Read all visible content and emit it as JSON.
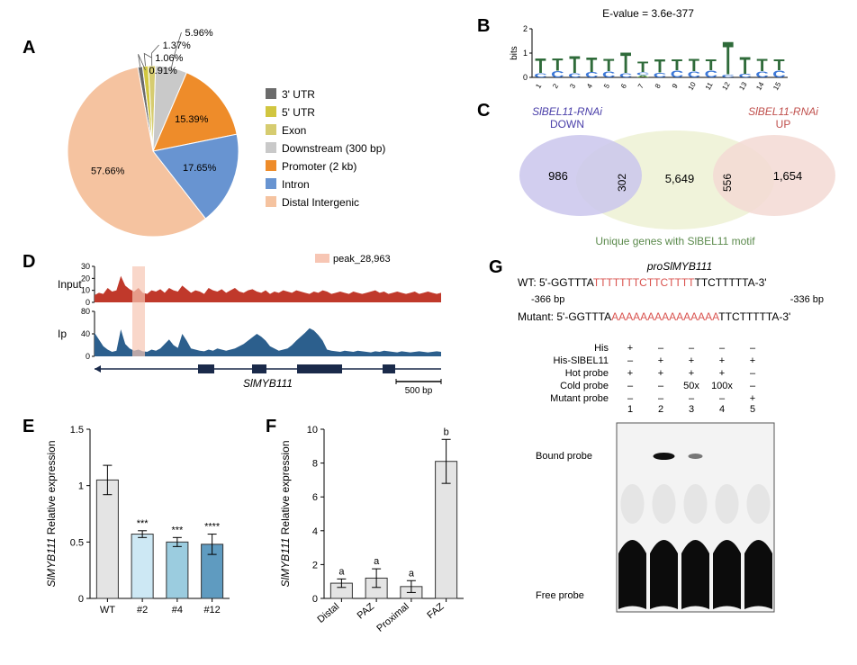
{
  "panelA": {
    "label": "A",
    "pie": {
      "slices": [
        {
          "name": "Distal Intergenic",
          "pct": 57.66,
          "color": "#f5c3a0",
          "label_outside": false
        },
        {
          "name": "Intron",
          "pct": 17.65,
          "color": "#6894d1",
          "label_outside": false
        },
        {
          "name": "Promoter (2 kb)",
          "pct": 15.39,
          "color": "#ee8c2a",
          "label_outside": false
        },
        {
          "name": "Downstream (300 bp)",
          "pct": 5.96,
          "color": "#c9c9c9",
          "label_outside": true
        },
        {
          "name": "Exon",
          "pct": 1.37,
          "color": "#d6cc70",
          "label_outside": true
        },
        {
          "name": "5' UTR",
          "pct": 1.06,
          "color": "#d1c640",
          "label_outside": true
        },
        {
          "name": "3' UTR",
          "pct": 0.91,
          "color": "#6b6b6b",
          "label_outside": true
        }
      ],
      "legend_order": [
        "3' UTR",
        "5' UTR",
        "Exon",
        "Downstream (300 bp)",
        "Promoter (2 kb)",
        "Intron",
        "Distal Intergenic"
      ],
      "label_font_size": 11,
      "legend_font_size": 12
    }
  },
  "panelB": {
    "label": "B",
    "evalue": "E-value = 3.6e-377",
    "motif": {
      "ylabel": "bits",
      "ymax": 2,
      "positions": 15,
      "columns": [
        [
          [
            "C",
            0.18
          ],
          [
            "T",
            0.65
          ]
        ],
        [
          [
            "C",
            0.28
          ],
          [
            "T",
            0.55
          ]
        ],
        [
          [
            "C",
            0.18
          ],
          [
            "T",
            0.75
          ]
        ],
        [
          [
            "C",
            0.22
          ],
          [
            "T",
            0.65
          ]
        ],
        [
          [
            "C",
            0.25
          ],
          [
            "T",
            0.55
          ]
        ],
        [
          [
            "C",
            0.18
          ],
          [
            "T",
            0.9
          ]
        ],
        [
          [
            "A",
            0.1
          ],
          [
            "C",
            0.12
          ],
          [
            "T",
            0.45
          ]
        ],
        [
          [
            "C",
            0.2
          ],
          [
            "T",
            0.6
          ]
        ],
        [
          [
            "C",
            0.3
          ],
          [
            "T",
            0.5
          ]
        ],
        [
          [
            "C",
            0.25
          ],
          [
            "T",
            0.55
          ]
        ],
        [
          [
            "C",
            0.3
          ],
          [
            "T",
            0.5
          ]
        ],
        [
          [
            "C",
            0.12
          ],
          [
            "T",
            1.45
          ]
        ],
        [
          [
            "C",
            0.15
          ],
          [
            "T",
            0.75
          ]
        ],
        [
          [
            "C",
            0.25
          ],
          [
            "T",
            0.55
          ]
        ],
        [
          [
            "C",
            0.3
          ],
          [
            "T",
            0.5
          ]
        ]
      ],
      "colors": {
        "A": "#6aa84f",
        "C": "#3c78d8",
        "G": "#e69138",
        "T": "#2f6b3a"
      },
      "font_size": 14
    }
  },
  "panelC": {
    "label": "C",
    "left_title": "SlBEL11-RNAi",
    "left_sub": "DOWN",
    "right_title": "SlBEL11-RNAi",
    "right_sub": "UP",
    "values": {
      "left_only": 986,
      "left_mid": 302,
      "center": 5649,
      "center_label": "5,649",
      "right_mid": 556,
      "right_only": 1654,
      "right_only_label": "1,654"
    },
    "bottom": "Unique genes with SlBEL11 motif",
    "colors": {
      "left": "#cac6ec",
      "center": "#eef2d6",
      "right": "#f3d9d4",
      "left_text": "#4a3fa9",
      "right_text": "#c0504d",
      "bottom_text": "#5b8a4c"
    }
  },
  "panelD": {
    "label": "D",
    "peak_label": "peak_28,963",
    "peak_color": "#f7c6b4",
    "tracks": [
      {
        "name": "Input",
        "color": "#c0392b",
        "ymax": 30,
        "yticks": [
          0,
          10,
          20,
          30
        ]
      },
      {
        "name": "Ip",
        "color": "#2c5f8d",
        "ymax": 80,
        "yticks": [
          0,
          40,
          80
        ]
      }
    ],
    "gene_name": "SlMYB111",
    "scale_label": "500 bp",
    "input_profile": [
      6,
      8,
      7,
      12,
      9,
      10,
      22,
      14,
      11,
      9,
      12,
      8,
      7,
      10,
      9,
      11,
      8,
      12,
      10,
      9,
      14,
      11,
      8,
      10,
      9,
      7,
      12,
      10,
      9,
      11,
      8,
      10,
      12,
      9,
      8,
      10,
      11,
      9,
      8,
      10,
      7,
      9,
      8,
      10,
      9,
      8,
      10,
      9,
      8,
      7,
      9,
      8,
      10,
      9,
      7,
      8,
      9,
      8,
      7,
      9,
      8,
      7,
      8,
      9,
      10,
      8,
      9,
      7,
      8,
      9,
      8,
      7,
      8,
      9,
      7,
      8,
      9,
      8,
      7,
      8
    ],
    "ip_profile": [
      42,
      30,
      18,
      12,
      8,
      10,
      48,
      22,
      14,
      10,
      12,
      9,
      8,
      12,
      10,
      14,
      22,
      30,
      20,
      15,
      40,
      28,
      14,
      12,
      10,
      9,
      12,
      10,
      14,
      12,
      10,
      12,
      14,
      18,
      22,
      28,
      34,
      40,
      35,
      28,
      18,
      14,
      10,
      12,
      14,
      20,
      28,
      35,
      42,
      50,
      46,
      38,
      28,
      12,
      10,
      9,
      8,
      10,
      9,
      8,
      10,
      9,
      8,
      7,
      9,
      8,
      10,
      9,
      8,
      7,
      9,
      8,
      7,
      8,
      9,
      8,
      7,
      8,
      9,
      8
    ]
  },
  "panelE": {
    "label": "E",
    "ylabel_pre": "SlMYB111",
    "ylabel_post": " Relative expression",
    "ylim": [
      0,
      1.5
    ],
    "yticks": [
      0,
      0.5,
      1.0,
      1.5
    ],
    "categories": [
      "WT",
      "#2",
      "#4",
      "#12"
    ],
    "values": [
      1.05,
      0.57,
      0.5,
      0.48
    ],
    "errors": [
      0.13,
      0.03,
      0.04,
      0.09
    ],
    "sig": [
      "",
      "***",
      "***",
      "****"
    ],
    "colors": [
      "#e4e4e4",
      "#cde8f4",
      "#9bccdf",
      "#5f9bc0"
    ],
    "bar_border": "#333",
    "font_size": 12
  },
  "panelF": {
    "label": "F",
    "ylabel_pre": "SlMYB111",
    "ylabel_post": " Relative expression",
    "ylim": [
      0,
      10
    ],
    "yticks": [
      0,
      2,
      4,
      6,
      8,
      10
    ],
    "categories": [
      "Distal",
      "PAZ",
      "Proximal",
      "FAZ"
    ],
    "values": [
      0.9,
      1.2,
      0.7,
      8.1
    ],
    "errors": [
      0.25,
      0.55,
      0.35,
      1.3
    ],
    "sig": [
      "a",
      "a",
      "a",
      "b"
    ],
    "colors": [
      "#e4e4e4",
      "#e4e4e4",
      "#e4e4e4",
      "#e4e4e4"
    ],
    "bar_border": "#333",
    "font_size": 12
  },
  "panelG": {
    "label": "G",
    "title": "proSlMYB111",
    "wt_label": "WT: 5'-",
    "wt_seq_pre": "GGTTTA",
    "wt_seq_red": "TTTTTTTCTTCTTTT",
    "wt_seq_post": "TTCTTTTTA-3'",
    "coord_left": "-366 bp",
    "coord_right": "-336 bp",
    "mut_label": "Mutant: 5'-",
    "mut_seq_pre": "GGTTTA",
    "mut_seq_red": "AAAAAAAAAAAAAAA",
    "mut_seq_post": "TTCTTTTTA-3'",
    "emsa_rows": [
      {
        "label": "His",
        "cells": [
          "+",
          "–",
          "–",
          "–",
          "–"
        ]
      },
      {
        "label": "His-SlBEL11",
        "cells": [
          "–",
          "+",
          "+",
          "+",
          "+"
        ]
      },
      {
        "label": "Hot probe",
        "cells": [
          "+",
          "+",
          "+",
          "+",
          "–"
        ]
      },
      {
        "label": "Cold probe",
        "cells": [
          "–",
          "–",
          "50x",
          "100x",
          "–"
        ]
      },
      {
        "label": "Mutant probe",
        "cells": [
          "–",
          "–",
          "–",
          "–",
          "+"
        ]
      }
    ],
    "lanes": [
      "1",
      "2",
      "3",
      "4",
      "5"
    ],
    "bound_label": "Bound probe",
    "free_label": "Free probe"
  }
}
